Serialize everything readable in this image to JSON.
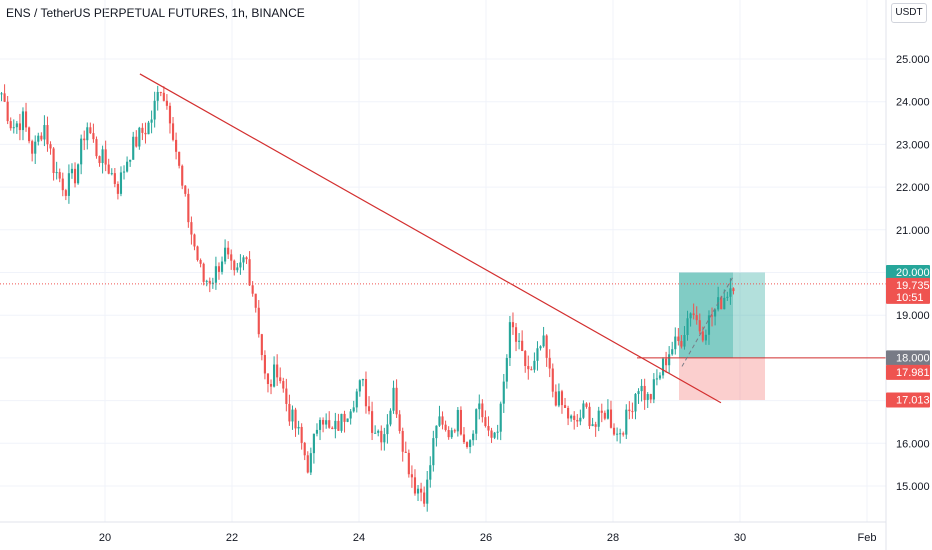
{
  "header": {
    "title": "ENS / TetherUS PERPETUAL FUTURES, 1h, BINANCE",
    "currency": "USDT"
  },
  "colors": {
    "up": "#26a69a",
    "down": "#ef5350",
    "trendline": "#d32f2f",
    "grid": "#f0f3fa",
    "profit_zone": "#26a69a",
    "loss_zone": "#ef5350",
    "entry_tag": "#787b86",
    "price_line": "#ef5350"
  },
  "chart_data": {
    "type": "candlestick",
    "x_tick_labels": [
      "20",
      "22",
      "24",
      "26",
      "28",
      "30",
      "Feb"
    ],
    "y_ticks": [
      15,
      16,
      17,
      18,
      19,
      20,
      21,
      22,
      23,
      24,
      25
    ],
    "y_tick_labels": [
      "15.000",
      "16.000",
      "17.000",
      "18.000",
      "19.000",
      "20.000",
      "21.000",
      "22.000",
      "23.000",
      "24.000",
      "25.000"
    ],
    "ylim": [
      14.4,
      25.2
    ],
    "price_path_close": [
      24.2,
      23.4,
      23.6,
      22.8,
      23.5,
      22.4,
      22.0,
      22.3,
      23.5,
      22.8,
      22.5,
      22.0,
      22.8,
      23.2,
      23.5,
      24.4,
      23.6,
      22.0,
      20.8,
      19.8,
      19.9,
      20.5,
      19.8,
      20.4,
      19.2,
      17.2,
      17.8,
      16.8,
      16.2,
      15.4,
      16.8,
      16.2,
      16.5,
      17.0,
      17.4,
      16.4,
      16.2,
      17.2,
      15.8,
      15.0,
      14.8,
      16.5,
      16.2,
      16.6,
      16.0,
      17.0,
      16.0,
      16.6,
      18.8,
      18.0,
      17.6,
      18.4,
      17.2,
      16.8,
      16.4,
      16.8,
      16.4,
      16.8,
      16.2,
      16.6,
      17.4,
      17.0,
      17.6,
      18.2,
      18.4,
      19.2,
      18.6,
      19.0,
      19.4,
      19.8
    ],
    "trendline": {
      "start_price": 24.65,
      "end_price": 16.95,
      "start_day": 20.55,
      "end_day": 29.7
    },
    "position": {
      "entry": 18.0,
      "target": 20.0,
      "stop": 17.013,
      "entry_label": "18.000",
      "target_label": "20.000",
      "stop_label": "17.013",
      "secondary_label": "17.981"
    },
    "last_price": {
      "value": 19.735,
      "label": "19.735",
      "countdown": "10:51"
    }
  }
}
